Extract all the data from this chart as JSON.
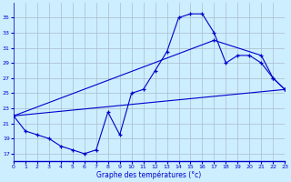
{
  "title": "Graphe des températures (°c)",
  "curve1_x": [
    0,
    1,
    2,
    3,
    4,
    5,
    6,
    7,
    8,
    9,
    10,
    11,
    12,
    13,
    14,
    15,
    16,
    17,
    18,
    19,
    20,
    21,
    22,
    23
  ],
  "curve1_y": [
    22,
    20,
    19.5,
    19,
    18,
    17.5,
    17,
    17.5,
    22.5,
    19.5,
    25,
    25.5,
    28,
    30.5,
    35,
    35.5,
    35.5,
    33,
    29,
    30,
    30,
    29,
    27,
    25.5
  ],
  "curve2_x": [
    0,
    17,
    21,
    22,
    23
  ],
  "curve2_y": [
    22,
    32,
    30,
    27,
    25.5
  ],
  "curve3_x": [
    0,
    23
  ],
  "curve3_y": [
    22,
    25.5
  ],
  "line_color": "#0000cc",
  "bg_color": "#cceeff",
  "grid_color": "#aabbcc",
  "ylim": [
    16,
    37
  ],
  "yticks": [
    17,
    19,
    21,
    23,
    25,
    27,
    29,
    31,
    33,
    35
  ],
  "xlim": [
    0,
    23
  ],
  "xticks": [
    0,
    1,
    2,
    3,
    4,
    5,
    6,
    7,
    8,
    9,
    10,
    11,
    12,
    13,
    14,
    15,
    16,
    17,
    18,
    19,
    20,
    21,
    22,
    23
  ]
}
